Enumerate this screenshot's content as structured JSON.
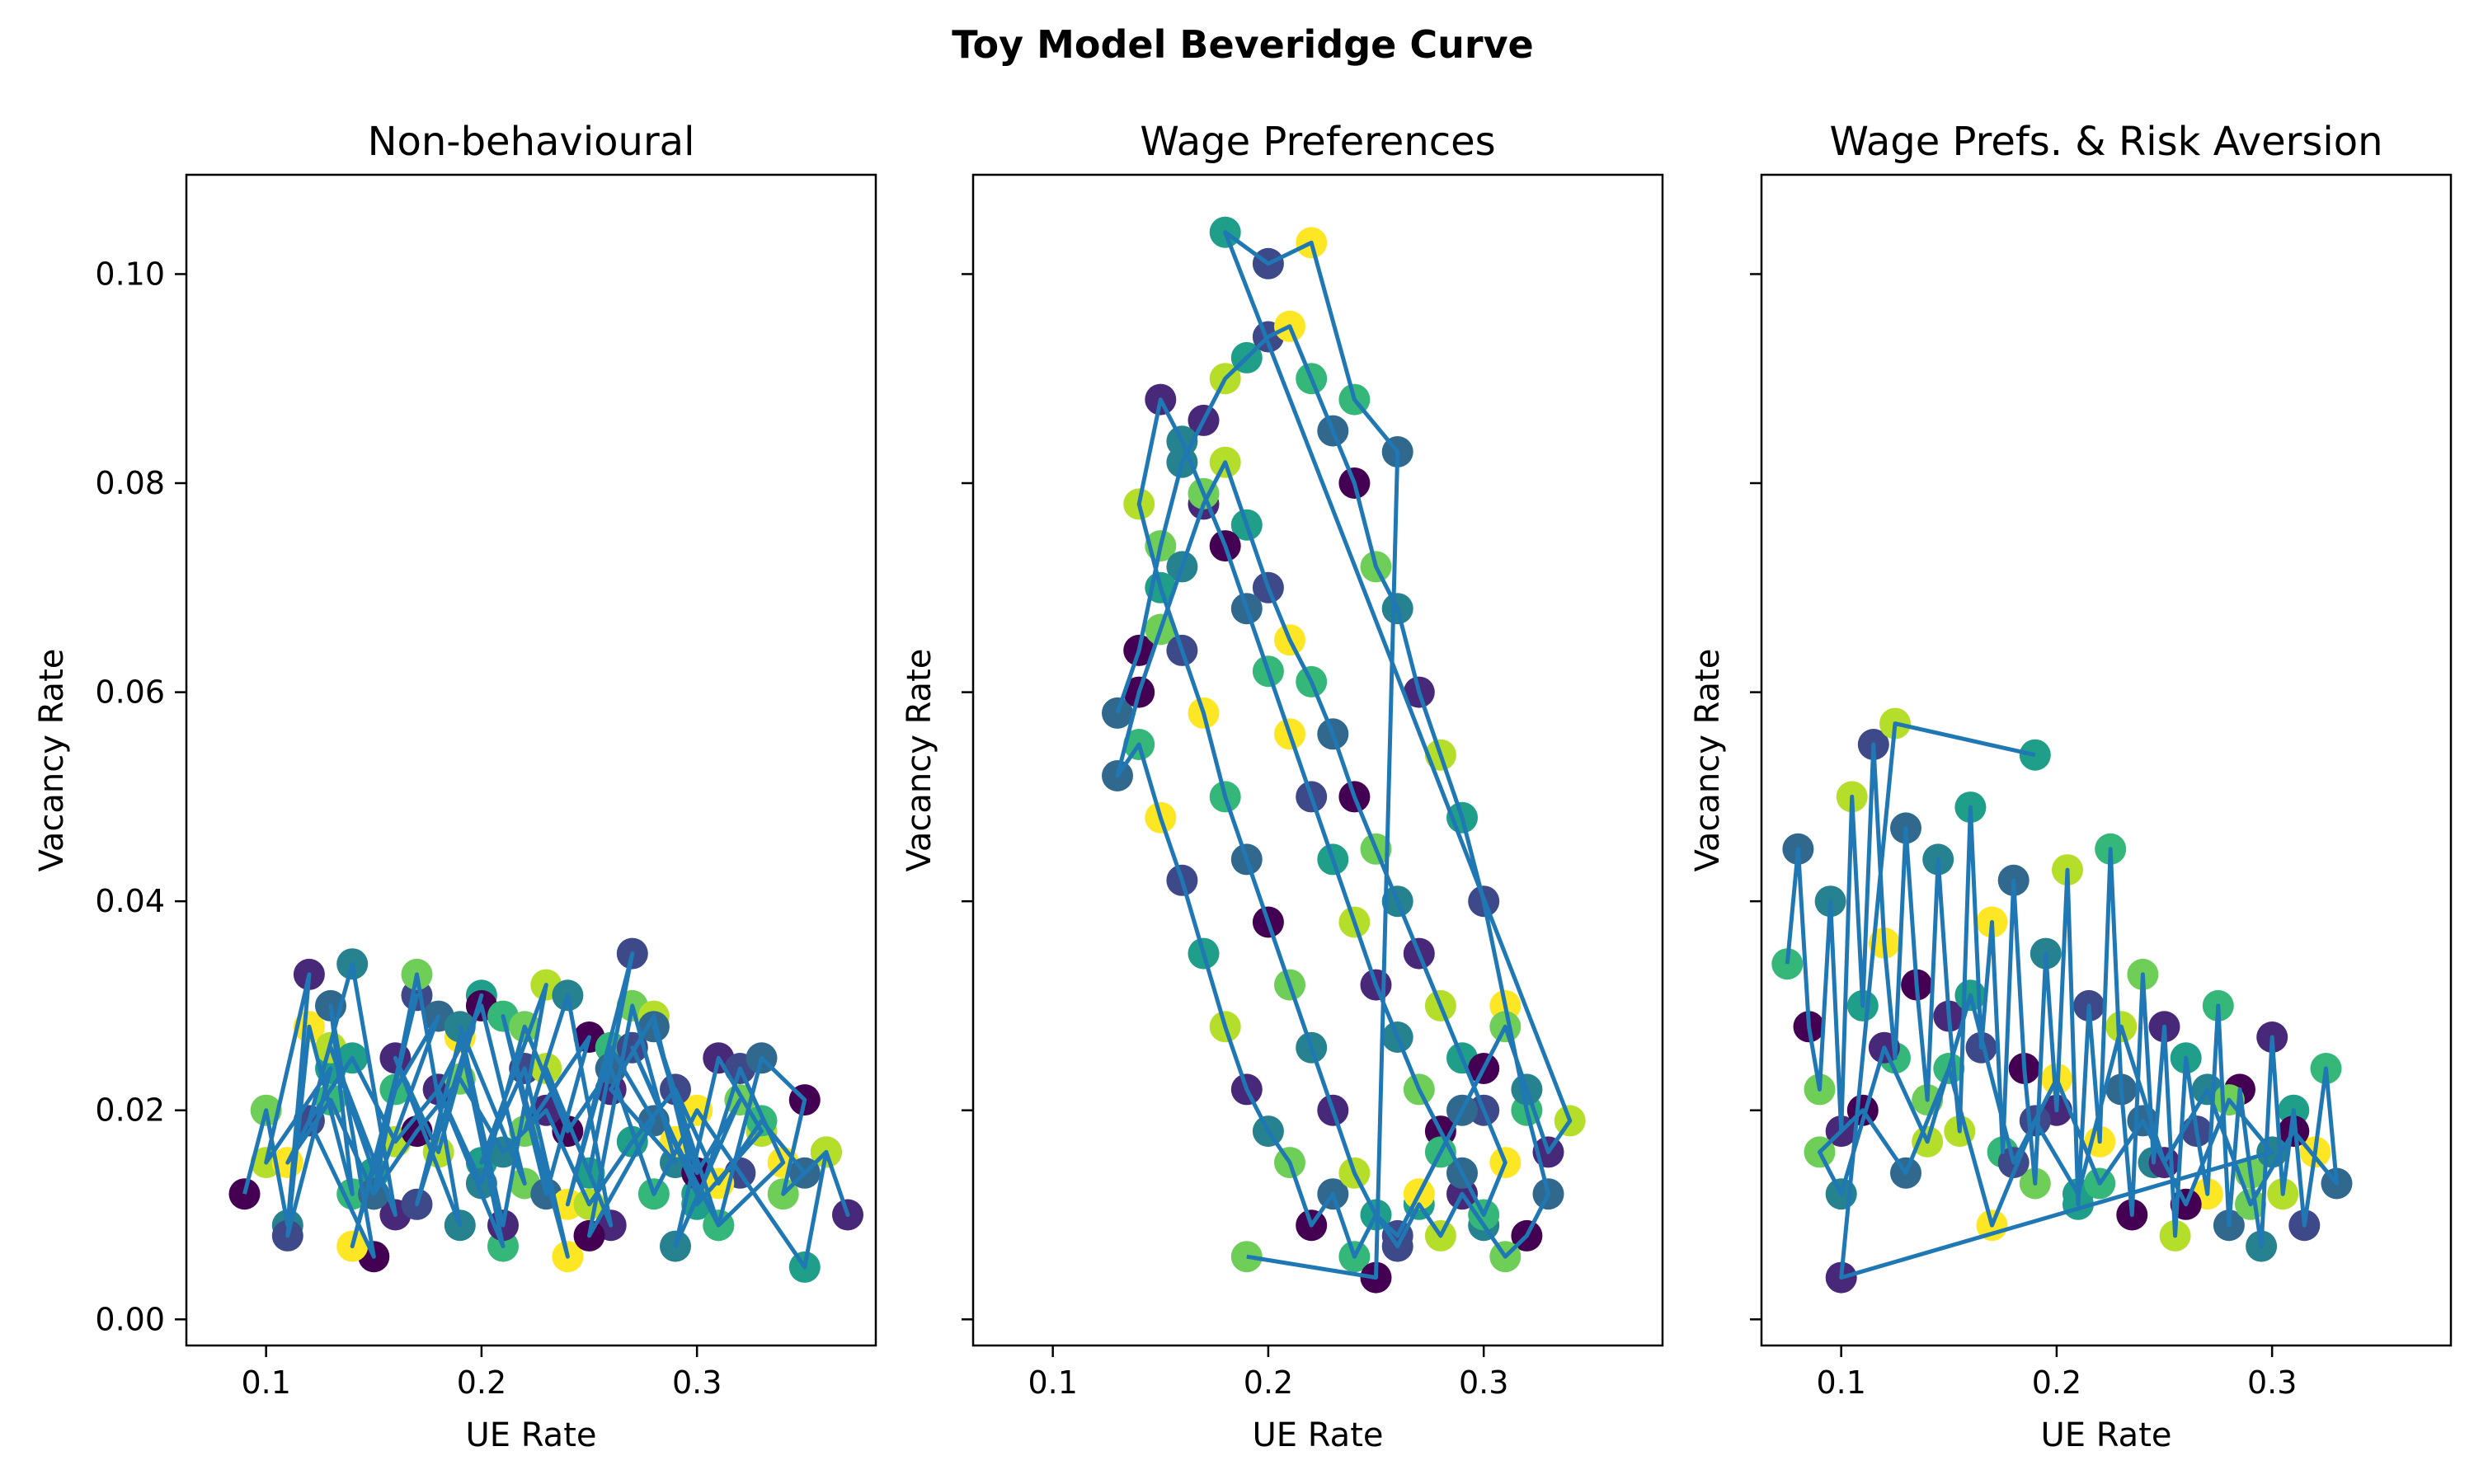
{
  "suptitle": "Toy Model Beveridge Curve",
  "chart_data": [
    {
      "type": "scatter",
      "title": "Non-behavioural",
      "xlabel": "UE Rate",
      "ylabel": "Vacancy Rate",
      "xlim": [
        0.063,
        0.383
      ],
      "ylim": [
        -0.0025,
        0.1095
      ],
      "xticks": [
        "0.1",
        "0.2",
        "0.3"
      ],
      "yticks": [
        "0.00",
        "0.02",
        "0.04",
        "0.06",
        "0.08",
        "0.10"
      ],
      "ytick_labels_shown": true,
      "marker_colormap": "viridis",
      "line_color": "#1f77b4",
      "x": [
        0.09,
        0.1,
        0.11,
        0.12,
        0.1,
        0.13,
        0.11,
        0.12,
        0.14,
        0.13,
        0.15,
        0.12,
        0.14,
        0.16,
        0.13,
        0.15,
        0.17,
        0.14,
        0.16,
        0.18,
        0.15,
        0.17,
        0.19,
        0.16,
        0.18,
        0.2,
        0.17,
        0.19,
        0.21,
        0.18,
        0.2,
        0.22,
        0.19,
        0.21,
        0.23,
        0.2,
        0.22,
        0.24,
        0.21,
        0.23,
        0.25,
        0.22,
        0.24,
        0.26,
        0.23,
        0.25,
        0.27,
        0.24,
        0.26,
        0.28,
        0.25,
        0.27,
        0.29,
        0.26,
        0.28,
        0.3,
        0.27,
        0.29,
        0.31,
        0.28,
        0.3,
        0.32,
        0.29,
        0.31,
        0.33,
        0.3,
        0.32,
        0.34,
        0.31,
        0.33,
        0.35,
        0.34,
        0.36,
        0.37,
        0.36,
        0.35,
        0.32,
        0.3,
        0.28,
        0.26,
        0.24,
        0.22,
        0.2,
        0.18,
        0.16,
        0.14,
        0.12,
        0.11,
        0.13,
        0.15,
        0.17,
        0.19,
        0.21,
        0.23,
        0.25,
        0.27,
        0.29,
        0.31,
        0.33,
        0.35
      ],
      "y": [
        0.012,
        0.02,
        0.009,
        0.033,
        0.015,
        0.024,
        0.008,
        0.028,
        0.012,
        0.03,
        0.006,
        0.019,
        0.034,
        0.01,
        0.026,
        0.014,
        0.031,
        0.007,
        0.022,
        0.029,
        0.012,
        0.033,
        0.009,
        0.025,
        0.016,
        0.031,
        0.011,
        0.027,
        0.007,
        0.022,
        0.03,
        0.013,
        0.028,
        0.009,
        0.032,
        0.015,
        0.024,
        0.006,
        0.029,
        0.012,
        0.027,
        0.018,
        0.031,
        0.009,
        0.024,
        0.014,
        0.035,
        0.011,
        0.026,
        0.019,
        0.008,
        0.03,
        0.015,
        0.022,
        0.029,
        0.012,
        0.026,
        0.017,
        0.009,
        0.028,
        0.014,
        0.021,
        0.007,
        0.025,
        0.018,
        0.011,
        0.024,
        0.015,
        0.009,
        0.025,
        0.021,
        0.012,
        0.016,
        0.01,
        0.016,
        0.005,
        0.014,
        0.02,
        0.012,
        0.024,
        0.018,
        0.028,
        0.013,
        0.022,
        0.017,
        0.025,
        0.019,
        0.015,
        0.021,
        0.012,
        0.018,
        0.023,
        0.016,
        0.02,
        0.011,
        0.017,
        0.022,
        0.013,
        0.019,
        0.014
      ]
    },
    {
      "type": "scatter",
      "title": "Wage Preferences",
      "xlabel": "UE Rate",
      "ylabel": "Vacancy Rate",
      "xlim": [
        0.063,
        0.383
      ],
      "ylim": [
        -0.0025,
        0.1095
      ],
      "xticks": [
        "0.1",
        "0.2",
        "0.3"
      ],
      "yticks": [
        "0.00",
        "0.02",
        "0.04",
        "0.06",
        "0.08",
        "0.10"
      ],
      "ytick_labels_shown": false,
      "marker_colormap": "viridis",
      "line_color": "#1f77b4",
      "x": [
        0.13,
        0.14,
        0.15,
        0.16,
        0.17,
        0.18,
        0.19,
        0.2,
        0.21,
        0.22,
        0.23,
        0.24,
        0.25,
        0.26,
        0.27,
        0.28,
        0.29,
        0.3,
        0.31,
        0.32,
        0.33,
        0.32,
        0.31,
        0.3,
        0.29,
        0.28,
        0.27,
        0.26,
        0.25,
        0.24,
        0.23,
        0.22,
        0.21,
        0.2,
        0.19,
        0.18,
        0.17,
        0.16,
        0.15,
        0.14,
        0.13,
        0.14,
        0.15,
        0.16,
        0.17,
        0.18,
        0.19,
        0.2,
        0.21,
        0.22,
        0.23,
        0.24,
        0.25,
        0.26,
        0.27,
        0.28,
        0.29,
        0.3,
        0.31,
        0.3,
        0.29,
        0.28,
        0.27,
        0.26,
        0.25,
        0.24,
        0.23,
        0.22,
        0.21,
        0.2,
        0.19,
        0.18,
        0.17,
        0.16,
        0.15,
        0.14,
        0.15,
        0.16,
        0.17,
        0.18,
        0.19,
        0.2,
        0.21,
        0.22,
        0.23,
        0.24,
        0.25,
        0.26,
        0.27,
        0.28,
        0.29,
        0.3,
        0.31,
        0.32,
        0.33,
        0.34,
        0.18,
        0.2,
        0.22,
        0.24,
        0.26,
        0.25,
        0.19
      ],
      "y": [
        0.058,
        0.064,
        0.074,
        0.082,
        0.086,
        0.09,
        0.092,
        0.094,
        0.095,
        0.09,
        0.085,
        0.08,
        0.072,
        0.068,
        0.06,
        0.054,
        0.048,
        0.04,
        0.03,
        0.02,
        0.012,
        0.008,
        0.006,
        0.009,
        0.012,
        0.008,
        0.011,
        0.007,
        0.01,
        0.006,
        0.012,
        0.009,
        0.015,
        0.018,
        0.022,
        0.028,
        0.035,
        0.042,
        0.048,
        0.055,
        0.052,
        0.06,
        0.066,
        0.072,
        0.078,
        0.082,
        0.076,
        0.07,
        0.065,
        0.061,
        0.056,
        0.05,
        0.045,
        0.04,
        0.035,
        0.03,
        0.025,
        0.02,
        0.015,
        0.01,
        0.014,
        0.018,
        0.022,
        0.027,
        0.032,
        0.038,
        0.044,
        0.05,
        0.056,
        0.062,
        0.068,
        0.074,
        0.079,
        0.084,
        0.088,
        0.078,
        0.07,
        0.064,
        0.058,
        0.05,
        0.044,
        0.038,
        0.032,
        0.026,
        0.02,
        0.014,
        0.01,
        0.008,
        0.012,
        0.016,
        0.02,
        0.024,
        0.028,
        0.022,
        0.016,
        0.019,
        0.104,
        0.101,
        0.103,
        0.088,
        0.083,
        0.004,
        0.006
      ]
    },
    {
      "type": "scatter",
      "title": "Wage Prefs. & Risk Aversion",
      "xlabel": "UE Rate",
      "ylabel": "Vacancy Rate",
      "xlim": [
        0.063,
        0.383
      ],
      "ylim": [
        -0.0025,
        0.1095
      ],
      "xticks": [
        "0.1",
        "0.2",
        "0.3"
      ],
      "yticks": [
        "0.00",
        "0.02",
        "0.04",
        "0.06",
        "0.08",
        "0.10"
      ],
      "ytick_labels_shown": false,
      "marker_colormap": "viridis",
      "line_color": "#1f77b4",
      "x": [
        0.075,
        0.08,
        0.085,
        0.09,
        0.095,
        0.1,
        0.105,
        0.11,
        0.115,
        0.12,
        0.125,
        0.13,
        0.135,
        0.14,
        0.145,
        0.15,
        0.155,
        0.16,
        0.165,
        0.17,
        0.175,
        0.18,
        0.185,
        0.19,
        0.195,
        0.2,
        0.205,
        0.21,
        0.215,
        0.22,
        0.225,
        0.23,
        0.235,
        0.24,
        0.245,
        0.25,
        0.255,
        0.26,
        0.265,
        0.27,
        0.275,
        0.28,
        0.285,
        0.29,
        0.295,
        0.3,
        0.305,
        0.31,
        0.315,
        0.32,
        0.325,
        0.33,
        0.31,
        0.29,
        0.27,
        0.25,
        0.23,
        0.21,
        0.19,
        0.17,
        0.15,
        0.13,
        0.11,
        0.09,
        0.1,
        0.12,
        0.14,
        0.16,
        0.18,
        0.2,
        0.22,
        0.24,
        0.26,
        0.28,
        0.3,
        0.1,
        0.125,
        0.19
      ],
      "y": [
        0.034,
        0.045,
        0.028,
        0.022,
        0.04,
        0.018,
        0.05,
        0.03,
        0.055,
        0.036,
        0.025,
        0.047,
        0.032,
        0.021,
        0.044,
        0.029,
        0.018,
        0.049,
        0.026,
        0.038,
        0.016,
        0.042,
        0.024,
        0.013,
        0.035,
        0.02,
        0.043,
        0.011,
        0.03,
        0.017,
        0.045,
        0.022,
        0.01,
        0.033,
        0.015,
        0.028,
        0.008,
        0.025,
        0.018,
        0.012,
        0.03,
        0.009,
        0.022,
        0.014,
        0.007,
        0.027,
        0.012,
        0.02,
        0.009,
        0.016,
        0.024,
        0.013,
        0.018,
        0.011,
        0.022,
        0.015,
        0.028,
        0.012,
        0.019,
        0.009,
        0.024,
        0.014,
        0.02,
        0.016,
        0.012,
        0.026,
        0.017,
        0.031,
        0.015,
        0.023,
        0.013,
        0.019,
        0.011,
        0.021,
        0.016,
        0.004,
        0.057,
        0.054
      ]
    }
  ]
}
